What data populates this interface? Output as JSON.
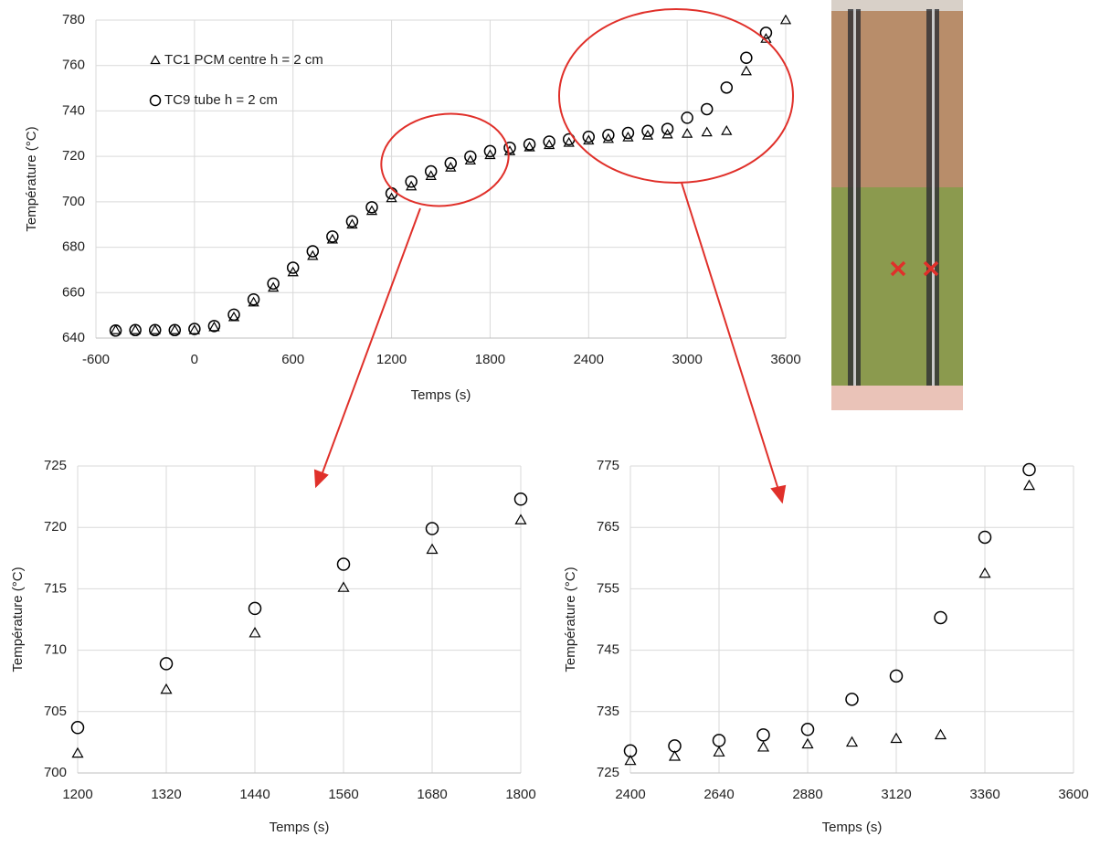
{
  "chart_data": [
    {
      "type": "scatter",
      "xlabel": "Temps (s)",
      "ylabel": "Température (°C)",
      "x": [
        -480,
        -360,
        -240,
        -120,
        0,
        120,
        240,
        360,
        480,
        600,
        720,
        840,
        960,
        1080,
        1200,
        1320,
        1440,
        1560,
        1680,
        1800,
        1920,
        2040,
        2160,
        2280,
        2400,
        2520,
        2640,
        2760,
        2880,
        3000,
        3120,
        3240,
        3360,
        3480,
        3600
      ],
      "series": [
        {
          "name": "TC1 PCM centre h = 2 cm",
          "marker": "triangle",
          "color": "#000000",
          "values": [
            643.5,
            643.5,
            643.5,
            643.5,
            643.5,
            644.8,
            649.2,
            655.7,
            662.2,
            669,
            676.2,
            683.4,
            690,
            696,
            701.6,
            706.8,
            711.4,
            715.1,
            718.2,
            720.6,
            722.3,
            724,
            725,
            726,
            727,
            727.7,
            728.4,
            729.2,
            729.7,
            730,
            730.6,
            731.2,
            757.5,
            771.8,
            780
          ]
        },
        {
          "name": "TC9 tube h = 2 cm",
          "marker": "circle",
          "color": "#000000",
          "values": [
            643.3,
            643.5,
            643.5,
            643.5,
            644,
            645.3,
            650.3,
            657,
            664,
            671,
            678.2,
            684.7,
            691.4,
            697.6,
            703.7,
            708.9,
            713.4,
            717,
            719.9,
            722.3,
            723.8,
            725.3,
            726.5,
            727.5,
            728.6,
            729.4,
            730.3,
            731.2,
            732.1,
            737,
            740.8,
            750.3,
            763.4,
            774.4,
            null
          ]
        }
      ],
      "xlim": [
        -600,
        3600
      ],
      "xticks": [
        -600,
        0,
        600,
        1200,
        1800,
        2400,
        3000,
        3600
      ],
      "ylim": [
        640,
        780
      ],
      "yticks": [
        640,
        660,
        680,
        700,
        720,
        740,
        760,
        780
      ],
      "grid": true,
      "legend": "top-left"
    },
    {
      "type": "scatter",
      "xlabel": "Temps (s)",
      "ylabel": "Température (°C)",
      "x": [
        1200,
        1320,
        1440,
        1560,
        1680,
        1800
      ],
      "series": [
        {
          "marker": "triangle",
          "color": "#000000",
          "values": [
            701.6,
            706.8,
            711.4,
            715.1,
            718.2,
            720.6
          ]
        },
        {
          "marker": "circle",
          "color": "#000000",
          "values": [
            703.7,
            708.9,
            713.4,
            717,
            719.9,
            722.3
          ]
        }
      ],
      "xlim": [
        1200,
        1800
      ],
      "xticks": [
        1200,
        1320,
        1440,
        1560,
        1680,
        1800
      ],
      "ylim": [
        700,
        725
      ],
      "yticks": [
        700,
        705,
        710,
        715,
        720,
        725
      ],
      "grid": true
    },
    {
      "type": "scatter",
      "xlabel": "Temps (s)",
      "ylabel": "Température (°C)",
      "x": [
        2400,
        2520,
        2640,
        2760,
        2880,
        3000,
        3120,
        3240,
        3360,
        3480
      ],
      "series": [
        {
          "marker": "triangle",
          "color": "#000000",
          "values": [
            727,
            727.7,
            728.4,
            729.2,
            729.7,
            730,
            730.6,
            731.2,
            757.5,
            771.8
          ]
        },
        {
          "marker": "circle",
          "color": "#000000",
          "values": [
            728.6,
            729.4,
            730.3,
            731.2,
            732.1,
            737,
            740.8,
            750.3,
            763.4,
            774.4
          ]
        }
      ],
      "xlim": [
        2400,
        3600
      ],
      "xticks": [
        2400,
        2640,
        2880,
        3120,
        3360,
        3600
      ],
      "ylim": [
        725,
        775
      ],
      "yticks": [
        725,
        735,
        745,
        755,
        765,
        775
      ],
      "grid": true
    }
  ]
}
